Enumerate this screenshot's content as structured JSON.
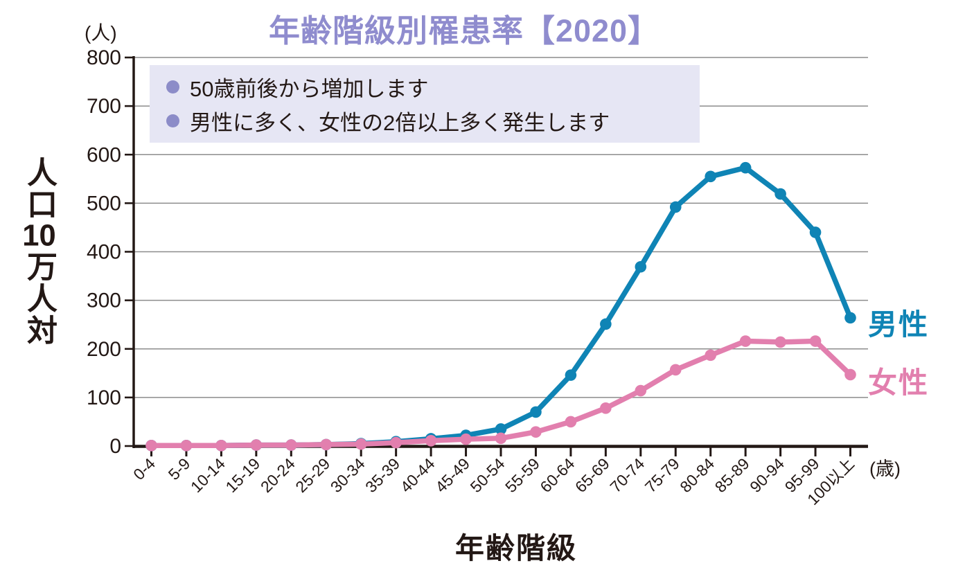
{
  "colors": {
    "male_line": "#0f84b5",
    "female_line": "#e27fae",
    "title": "#8f8cce",
    "bullet": "#8c8cc8",
    "callout_bg": "#e6e6f4",
    "grid": "#8c8c8c",
    "axis_text": "#231815"
  },
  "chart_data": {
    "type": "line",
    "title": "年齢階級別罹患率【2020】",
    "xlabel": "年齢階級",
    "ylabel": "人口10万人対",
    "ylabel_parts": [
      "人口",
      "10",
      "万人対"
    ],
    "y_unit": "(人)",
    "x_unit": "(歳)",
    "ylim": [
      0,
      800
    ],
    "yticks": [
      0,
      100,
      200,
      300,
      400,
      500,
      600,
      700,
      800
    ],
    "grid": true,
    "legend_position": "right-of-line-ends",
    "categories": [
      "0-4",
      "5-9",
      "10-14",
      "15-19",
      "20-24",
      "25-29",
      "30-34",
      "35-39",
      "40-44",
      "45-49",
      "50-54",
      "55-59",
      "60-64",
      "65-69",
      "70-74",
      "75-79",
      "80-84",
      "85-89",
      "90-94",
      "95-99",
      "100以上"
    ],
    "series": [
      {
        "name": "男性",
        "color": "#0f84b5",
        "values": [
          1,
          1,
          1,
          2,
          2,
          3,
          5,
          9,
          15,
          22,
          35,
          70,
          146,
          251,
          369,
          492,
          555,
          573,
          519,
          440,
          264
        ]
      },
      {
        "name": "女性",
        "color": "#e27fae",
        "values": [
          1,
          1,
          1,
          2,
          2,
          3,
          4,
          7,
          11,
          14,
          16,
          29,
          50,
          78,
          114,
          157,
          187,
          216,
          214,
          216,
          147
        ]
      }
    ],
    "annotations": [
      "50歳前後から増加します",
      "男性に多く、女性の2倍以上多く発生します"
    ]
  }
}
